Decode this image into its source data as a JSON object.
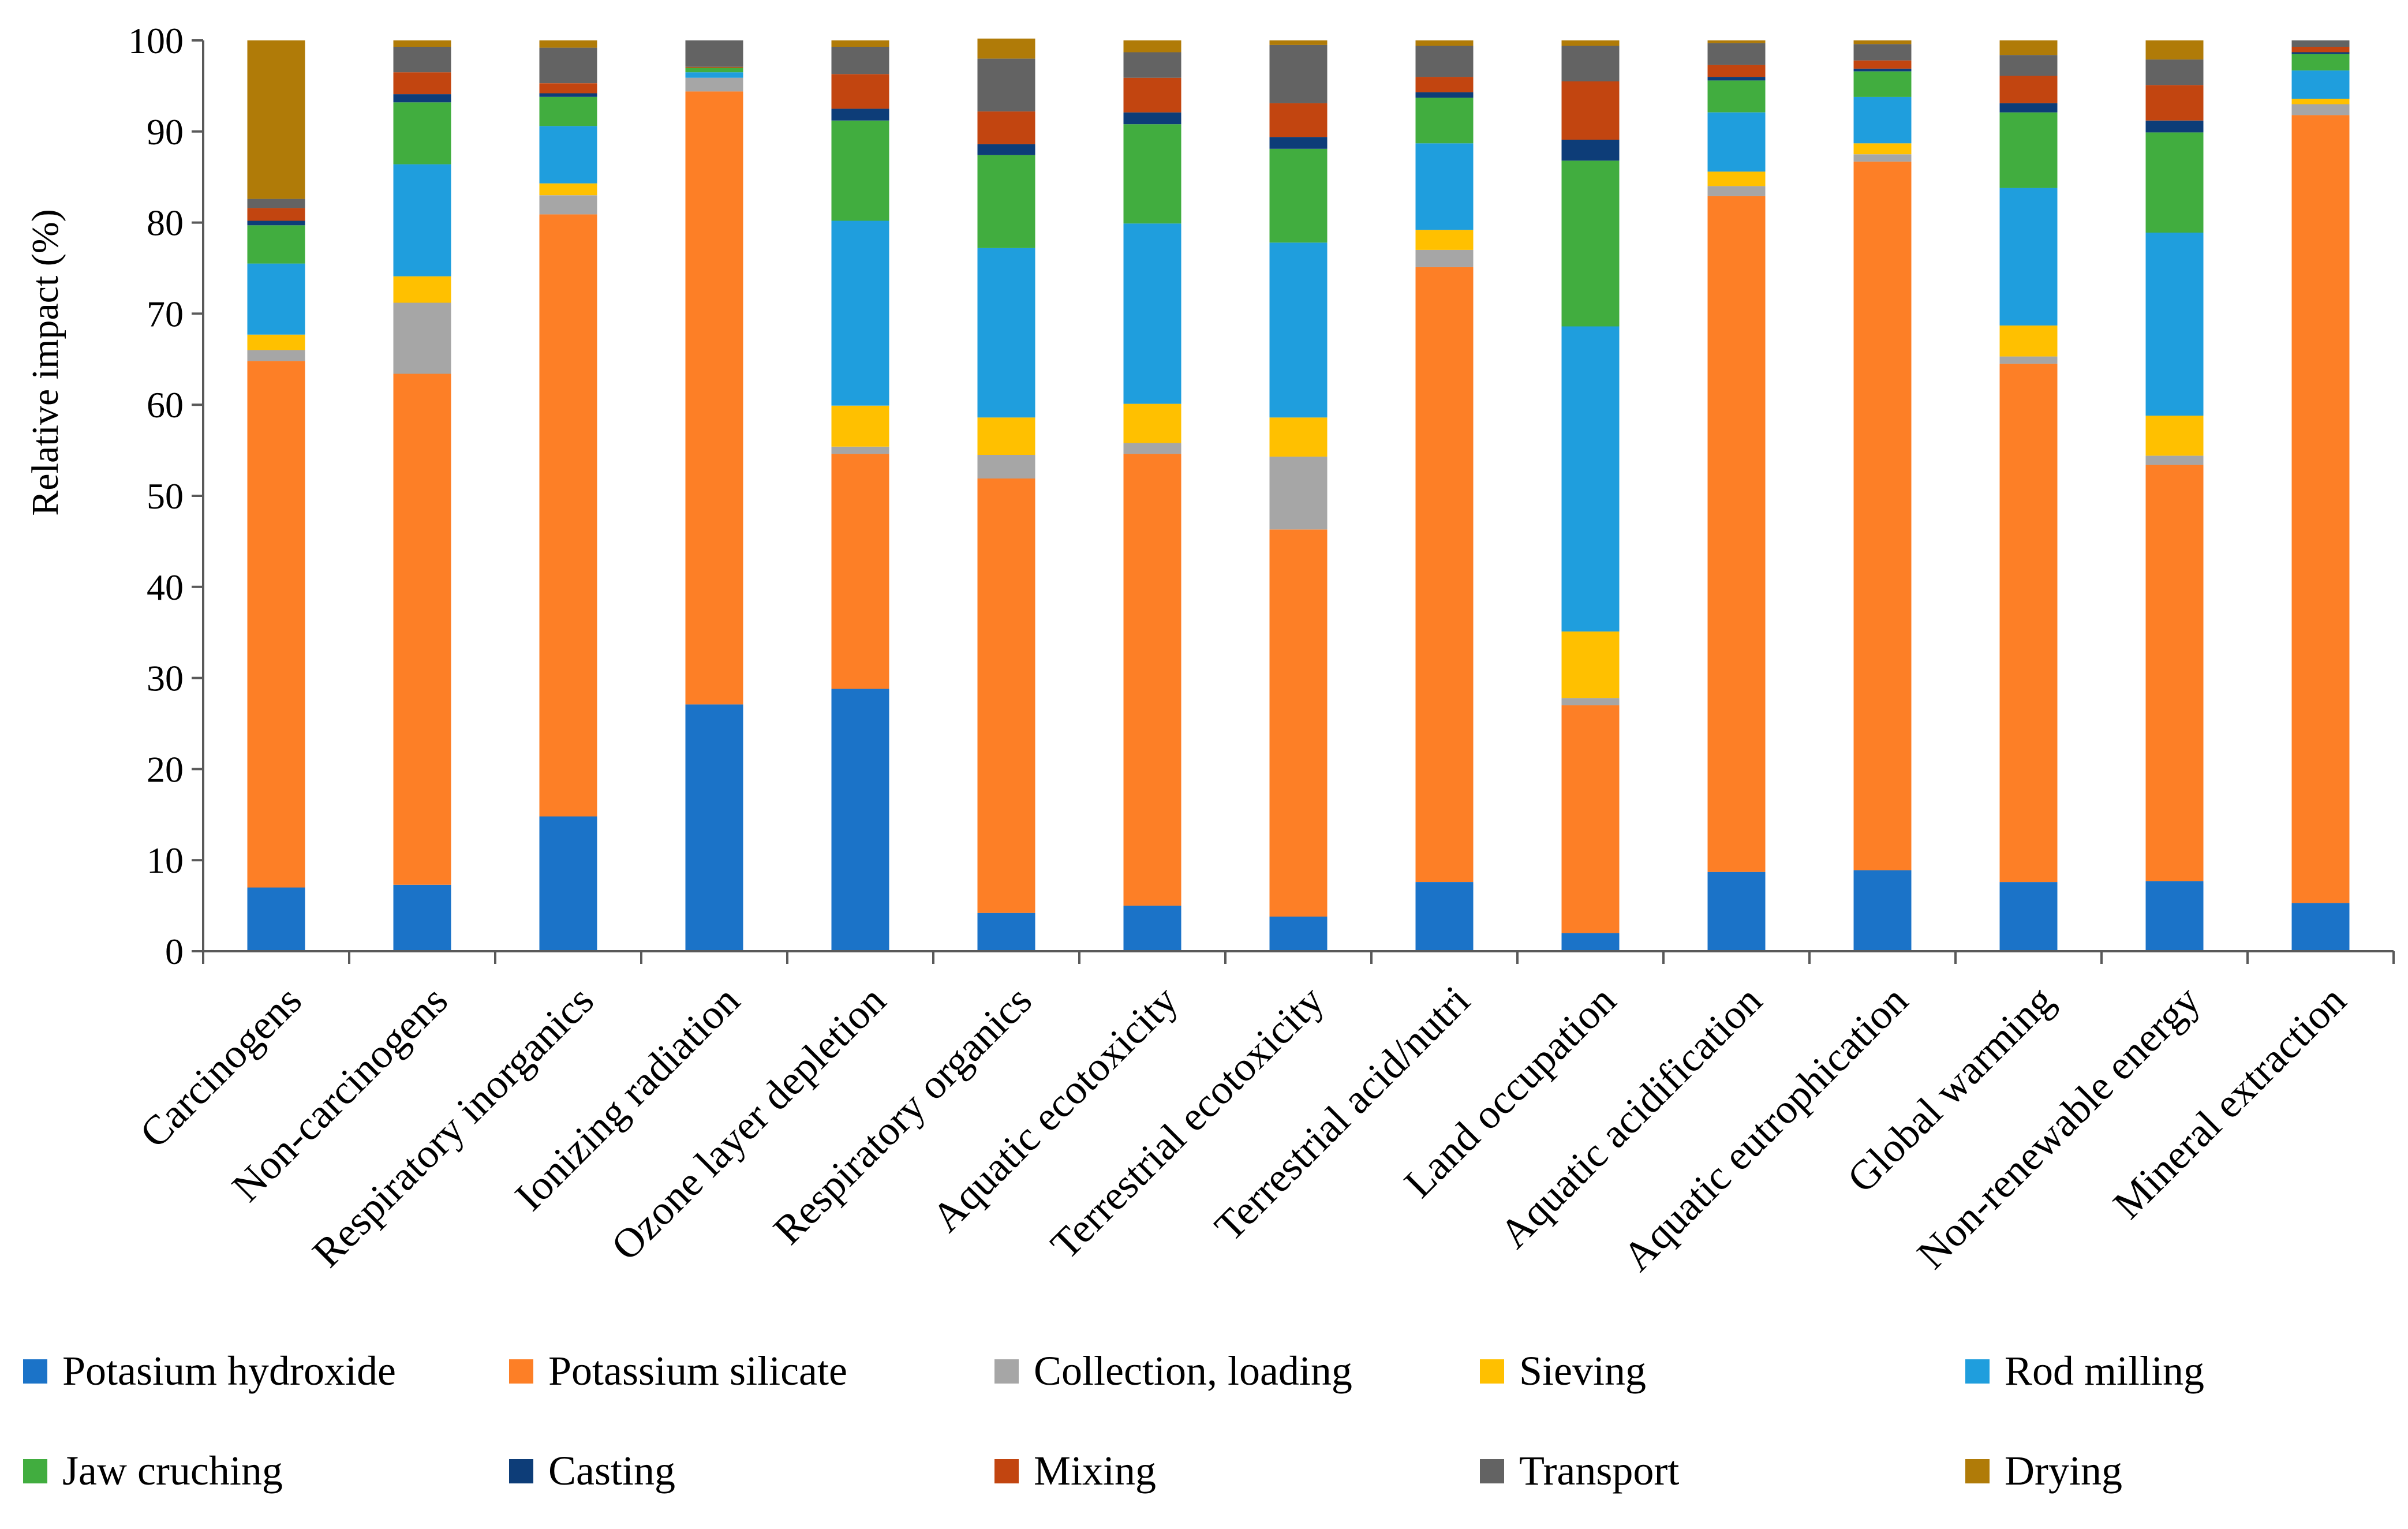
{
  "chart_data": {
    "type": "bar",
    "stacked": true,
    "title": "",
    "xlabel": "",
    "ylabel": "Relative impact (%)",
    "ylim": [
      0,
      100
    ],
    "yticks": [
      "0",
      "10",
      "20",
      "30",
      "40",
      "50",
      "60",
      "70",
      "80",
      "90",
      "100"
    ],
    "grid": false,
    "legend_position": "bottom",
    "categories": [
      "Carcinogens",
      "Non-carcinogens",
      "Respiratory inorganics",
      "Ionizing radiation",
      "Ozone layer depletion",
      "Respiratory organics",
      "Aquatic ecotoxicity",
      "Terrestrial ecotoxicity",
      "Terrestrial acid/nutri",
      "Land occupation",
      "Aquatic acidification",
      "Aquatic eutrophication",
      "Global warming",
      "Non-renewable energy",
      "Mineral extraction"
    ],
    "series": [
      {
        "name": "Potasium hydroxide",
        "color": "#1b73c8",
        "values": [
          7.0,
          7.3,
          14.8,
          27.1,
          28.8,
          4.2,
          5.0,
          3.8,
          7.6,
          2.0,
          8.7,
          8.9,
          7.6,
          7.7,
          5.3
        ]
      },
      {
        "name": "Potassium silicate",
        "color": "#fd7f26",
        "values": [
          57.8,
          56.1,
          66.1,
          67.3,
          25.8,
          47.7,
          49.6,
          42.5,
          67.5,
          25.0,
          74.2,
          77.8,
          56.9,
          45.7,
          86.5
        ]
      },
      {
        "name": "Collection, loading",
        "color": "#a6a6a6",
        "values": [
          1.2,
          7.8,
          2.1,
          1.5,
          0.8,
          2.6,
          1.2,
          8.0,
          1.9,
          0.8,
          1.1,
          0.8,
          0.8,
          1.0,
          1.2
        ]
      },
      {
        "name": "Sieving",
        "color": "#ffc000",
        "values": [
          1.7,
          2.9,
          1.3,
          0.0,
          4.5,
          4.1,
          4.3,
          4.3,
          2.2,
          7.3,
          1.6,
          1.2,
          3.4,
          4.4,
          0.6
        ]
      },
      {
        "name": "Rod milling",
        "color": "#1f9edd",
        "values": [
          7.8,
          12.3,
          6.3,
          0.6,
          20.3,
          18.6,
          19.8,
          19.2,
          9.5,
          33.5,
          6.5,
          5.1,
          15.1,
          20.1,
          3.1
        ]
      },
      {
        "name": "Jaw cruching",
        "color": "#41ad3f",
        "values": [
          4.2,
          6.8,
          3.2,
          0.5,
          11.0,
          10.2,
          10.9,
          10.3,
          5.0,
          18.2,
          3.5,
          2.8,
          8.3,
          11.0,
          1.8
        ]
      },
      {
        "name": "Casting",
        "color": "#0d3d78",
        "values": [
          0.5,
          0.9,
          0.4,
          0.0,
          1.3,
          1.2,
          1.3,
          1.3,
          0.6,
          2.3,
          0.4,
          0.3,
          1.0,
          1.3,
          0.2
        ]
      },
      {
        "name": "Mixing",
        "color": "#c24510",
        "values": [
          1.4,
          2.4,
          1.1,
          0.1,
          3.8,
          3.6,
          3.8,
          3.7,
          1.7,
          6.4,
          1.3,
          0.9,
          3.0,
          3.9,
          0.6
        ]
      },
      {
        "name": "Transport",
        "color": "#636363",
        "values": [
          1.0,
          2.8,
          3.9,
          2.9,
          3.0,
          5.8,
          2.8,
          6.4,
          3.4,
          3.9,
          2.4,
          1.8,
          2.3,
          2.8,
          0.7
        ]
      },
      {
        "name": "Drying",
        "color": "#b07b08",
        "values": [
          17.4,
          0.7,
          0.8,
          0.0,
          0.7,
          2.2,
          1.3,
          0.5,
          0.6,
          0.6,
          0.3,
          0.4,
          1.6,
          2.1,
          0.0
        ]
      }
    ]
  }
}
